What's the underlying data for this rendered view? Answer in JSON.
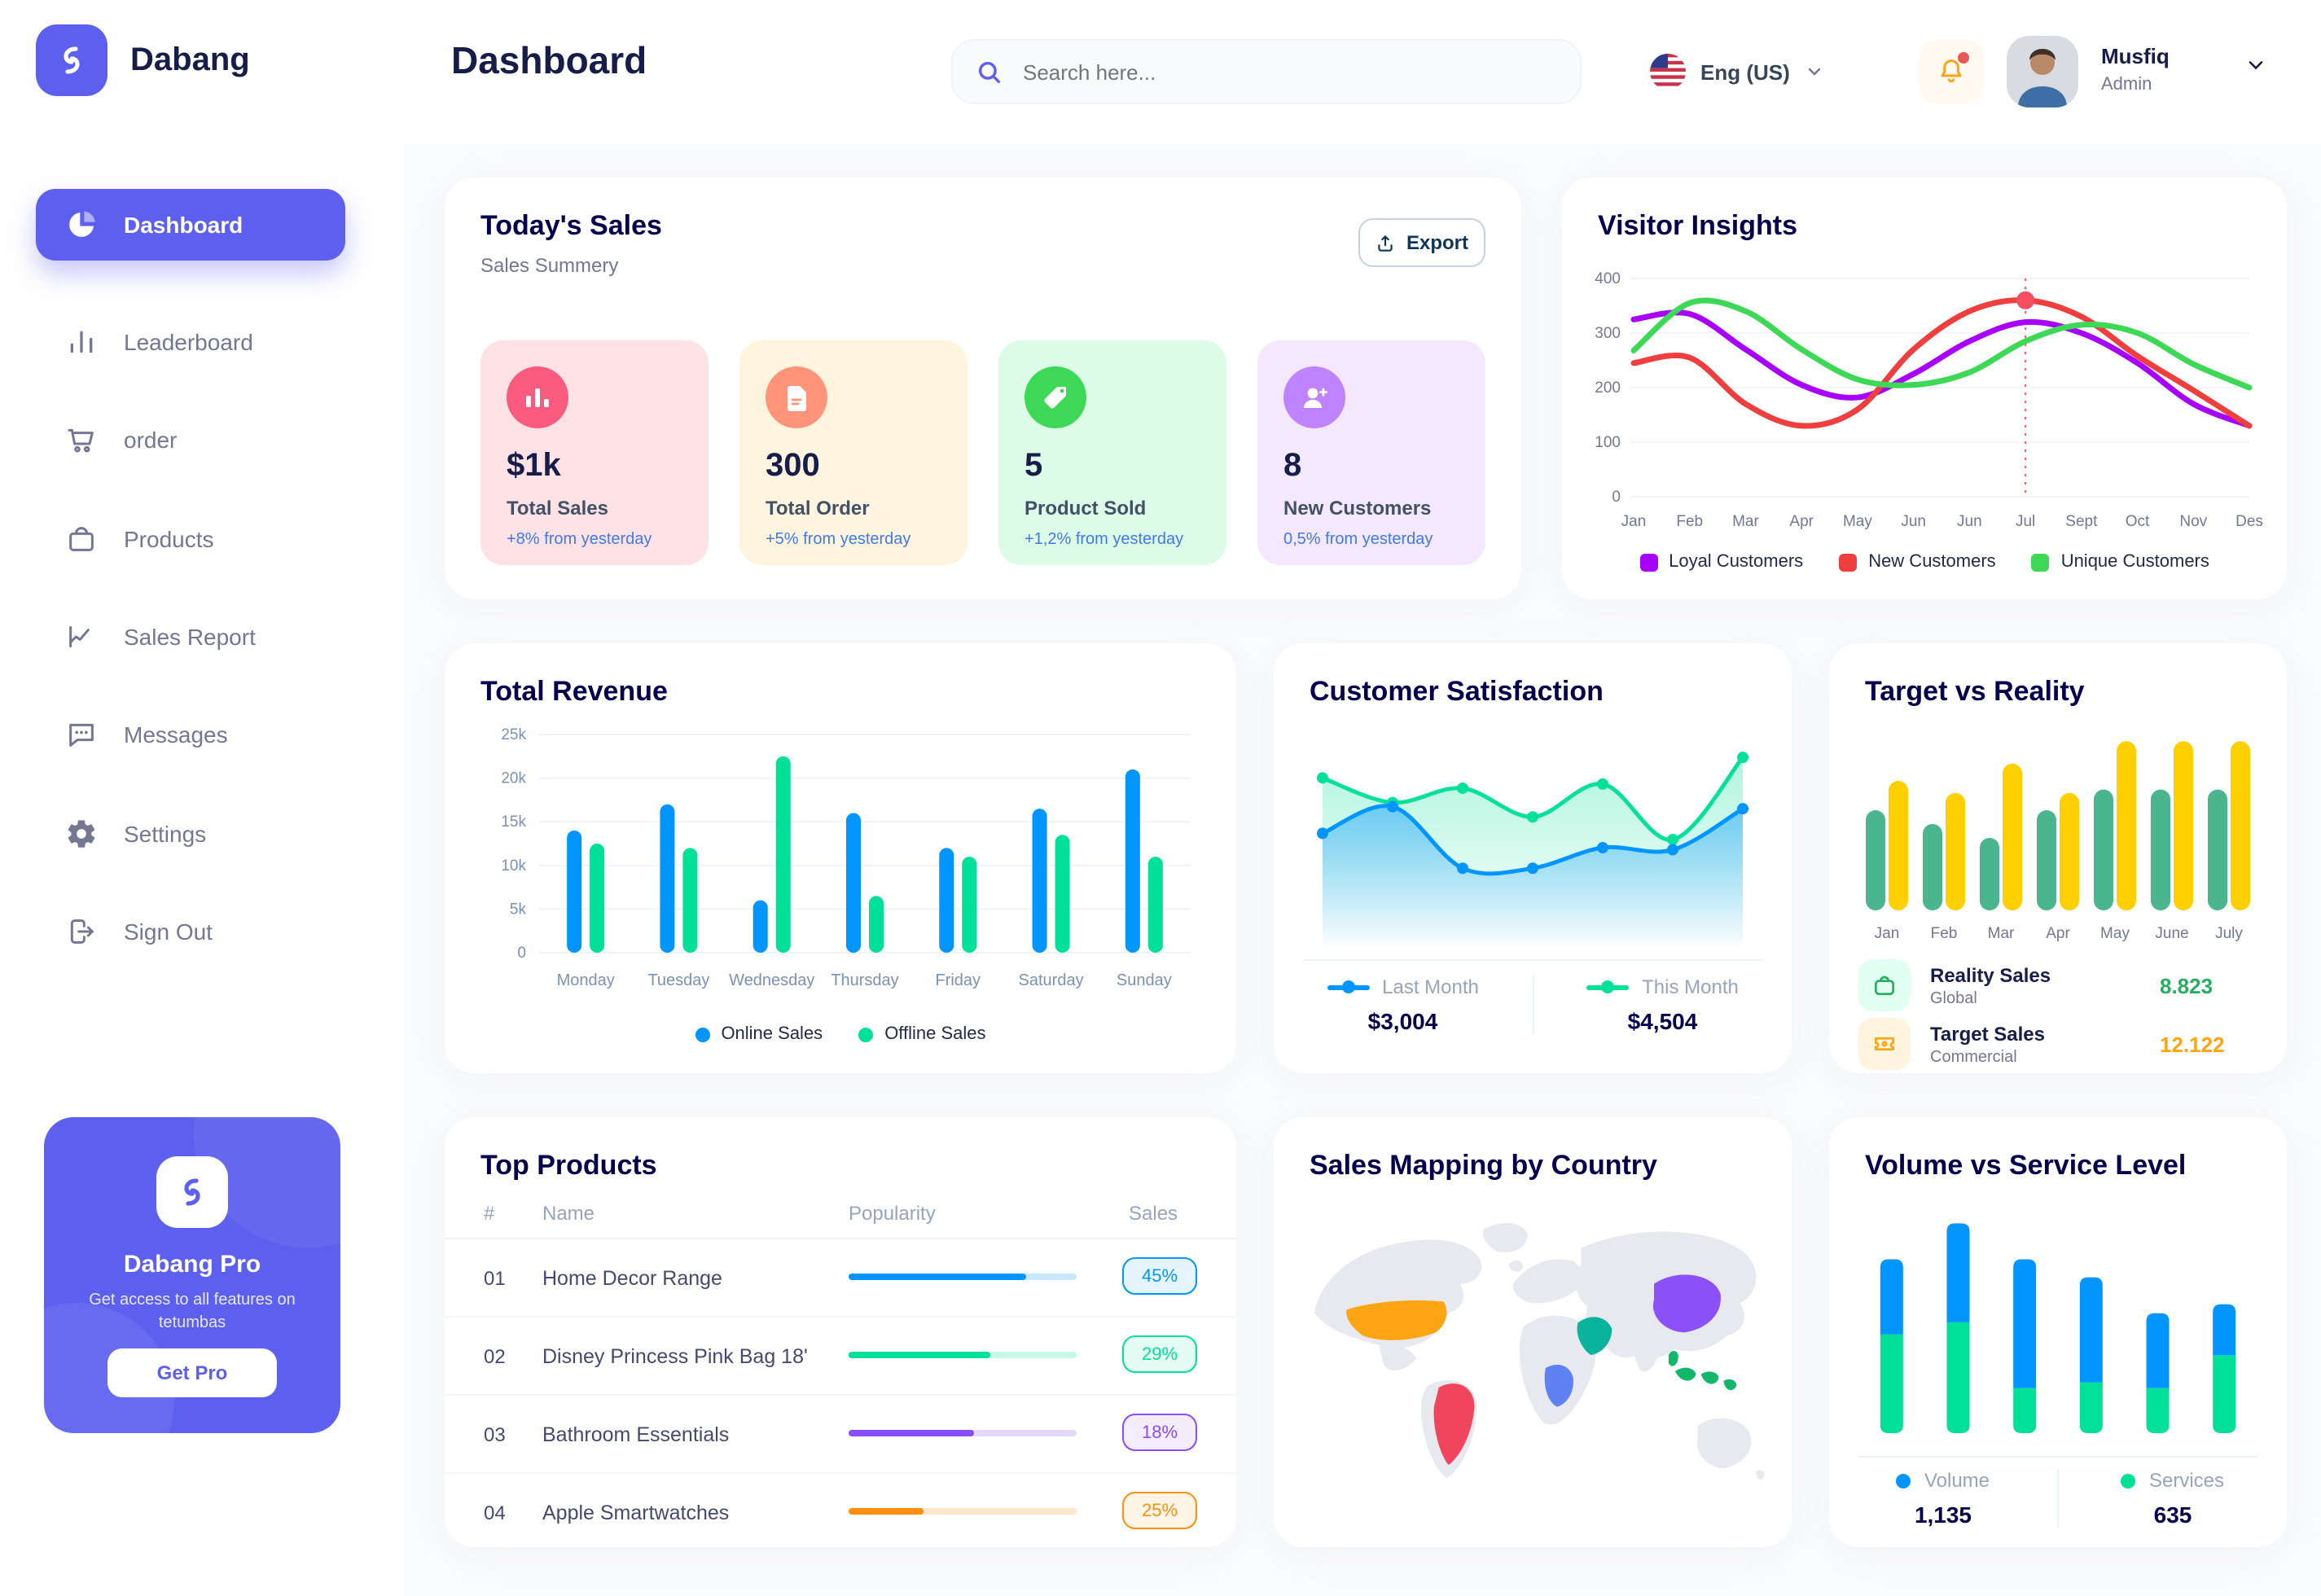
{
  "app": {
    "brand": "Dabang"
  },
  "header": {
    "page_title": "Dashboard",
    "search_placeholder": "Search here...",
    "language": "Eng (US)",
    "user_name": "Musfiq",
    "user_role": "Admin"
  },
  "sidebar": {
    "items": [
      {
        "label": "Dashboard",
        "active": true
      },
      {
        "label": "Leaderboard",
        "active": false
      },
      {
        "label": "order",
        "active": false
      },
      {
        "label": "Products",
        "active": false
      },
      {
        "label": "Sales Report",
        "active": false
      },
      {
        "label": "Messages",
        "active": false
      },
      {
        "label": "Settings",
        "active": false
      },
      {
        "label": "Sign Out",
        "active": false
      }
    ],
    "pro": {
      "title": "Dabang Pro",
      "description": "Get access to all features on tetumbas",
      "button_label": "Get Pro"
    }
  },
  "todays_sales": {
    "title": "Today's Sales",
    "subtitle": "Sales Summery",
    "export_label": "Export",
    "stats": [
      {
        "value": "$1k",
        "label": "Total Sales",
        "delta": "+8% from yesterday",
        "card_bg": "#FFE2E5",
        "icon_bg": "#FA5A7D"
      },
      {
        "value": "300",
        "label": "Total Order",
        "delta": "+5% from yesterday",
        "card_bg": "#FFF4DE",
        "icon_bg": "#FF947A"
      },
      {
        "value": "5",
        "label": "Product Sold",
        "delta": "+1,2% from yesterday",
        "card_bg": "#DCFCE7",
        "icon_bg": "#3CD856"
      },
      {
        "value": "8",
        "label": "New Customers",
        "delta": "0,5% from yesterday",
        "card_bg": "#F3E8FF",
        "icon_bg": "#BF83FF"
      }
    ]
  },
  "chart_data": [
    {
      "id": "visitor_insights",
      "type": "line",
      "title": "Visitor Insights",
      "x": [
        "Jan",
        "Feb",
        "Mar",
        "Apr",
        "May",
        "Jun",
        "Jun",
        "Jul",
        "Sept",
        "Oct",
        "Nov",
        "Des"
      ],
      "ylim": [
        0,
        400
      ],
      "yticks": [
        0,
        100,
        200,
        300,
        400
      ],
      "grid": true,
      "legend_position": "bottom",
      "series": [
        {
          "name": "Loyal Customers",
          "color": "#A700FF",
          "values": [
            325,
            335,
            270,
            205,
            182,
            225,
            285,
            320,
            300,
            245,
            170,
            130
          ]
        },
        {
          "name": "New Customers",
          "color": "#EF3E3E",
          "values": [
            245,
            255,
            170,
            130,
            160,
            270,
            340,
            360,
            330,
            258,
            195,
            130
          ]
        },
        {
          "name": "Unique Customers",
          "color": "#3CD856",
          "values": [
            268,
            355,
            340,
            270,
            215,
            205,
            228,
            285,
            315,
            300,
            243,
            200
          ]
        }
      ],
      "annotation": {
        "x_index": 7,
        "x_label": "Jul",
        "marker_series": 1,
        "marker_value": 360,
        "line_color": "#F64E60"
      }
    },
    {
      "id": "total_revenue",
      "type": "bar",
      "title": "Total Revenue",
      "categories": [
        "Monday",
        "Tuesday",
        "Wednesday",
        "Thursday",
        "Friday",
        "Saturday",
        "Sunday"
      ],
      "ylim": [
        0,
        25000
      ],
      "yticks": [
        "0",
        "5k",
        "10k",
        "15k",
        "20k",
        "25k"
      ],
      "ytick_values": [
        0,
        5000,
        10000,
        15000,
        20000,
        25000
      ],
      "grid": true,
      "legend_position": "bottom",
      "series": [
        {
          "name": "Online Sales",
          "color": "#0095FF",
          "values": [
            14000,
            17000,
            6000,
            16000,
            12000,
            16500,
            21000
          ]
        },
        {
          "name": "Offline Sales",
          "color": "#00E096",
          "values": [
            12500,
            12000,
            22500,
            6500,
            11000,
            13500,
            11000
          ]
        }
      ]
    },
    {
      "id": "customer_satisfaction",
      "type": "area",
      "title": "Customer Satisfaction",
      "ylim": [
        0,
        100
      ],
      "legend_position": "bottom",
      "series": [
        {
          "name": "Last Month",
          "color": "#0095FF",
          "total": "$3,004",
          "values": [
            55,
            68,
            38,
            38,
            48,
            47,
            67
          ]
        },
        {
          "name": "This Month",
          "color": "#07E098",
          "total": "$4,504",
          "values": [
            82,
            70,
            77,
            63,
            79,
            52,
            92
          ]
        }
      ]
    },
    {
      "id": "target_vs_reality",
      "type": "bar",
      "title": "Target vs Reality",
      "categories": [
        "Jan",
        "Feb",
        "Mar",
        "Apr",
        "May",
        "June",
        "July"
      ],
      "ylim": [
        0,
        100
      ],
      "series": [
        {
          "name": "Reality Sales",
          "color": "#4AB58E",
          "values": [
            58,
            50,
            42,
            58,
            70,
            70,
            70
          ]
        },
        {
          "name": "Target Sales",
          "color": "#FFCF00",
          "values": [
            75,
            68,
            85,
            68,
            98,
            98,
            98
          ]
        }
      ],
      "legend": [
        {
          "name": "Reality Sales",
          "sub": "Global",
          "value": "8.823",
          "value_color": "#27AE60",
          "icon_bg": "#E2FFF3",
          "icon_color": "#27AE60"
        },
        {
          "name": "Target Sales",
          "sub": "Commercial",
          "value": "12.122",
          "value_color": "#FFA412",
          "icon_bg": "#FFF4DE",
          "icon_color": "#FFA412"
        }
      ]
    },
    {
      "id": "volume_vs_service",
      "type": "stacked-bar",
      "title": "Volume vs Service Level",
      "ylim": [
        0,
        75
      ],
      "legend_position": "bottom",
      "series": [
        {
          "name": "Volume",
          "color": "#0095FF",
          "total": "1,135",
          "values": [
            25,
            33,
            43,
            35,
            25,
            17
          ]
        },
        {
          "name": "Services",
          "color": "#00E096",
          "total": "635",
          "values": [
            33,
            37,
            15,
            17,
            15,
            26
          ]
        }
      ]
    }
  ],
  "top_products": {
    "title": "Top Products",
    "columns": [
      "#",
      "Name",
      "Popularity",
      "Sales"
    ],
    "rows": [
      {
        "num": "01",
        "name": "Home Decor Range",
        "popularity": 78,
        "sales": "45%",
        "color": "#0095FF"
      },
      {
        "num": "02",
        "name": "Disney Princess Pink Bag 18'",
        "popularity": 62,
        "sales": "29%",
        "color": "#00E096"
      },
      {
        "num": "03",
        "name": "Bathroom Essentials",
        "popularity": 55,
        "sales": "18%",
        "color": "#884DFF"
      },
      {
        "num": "04",
        "name": "Apple Smartwatches",
        "popularity": 33,
        "sales": "25%",
        "color": "#FF8F0D"
      }
    ]
  },
  "sales_mapping": {
    "title": "Sales Mapping by Country",
    "countries": [
      {
        "name": "United States",
        "color": "#FFA412"
      },
      {
        "name": "Brazil",
        "color": "#F0455C"
      },
      {
        "name": "Saudi Arabia",
        "color": "#0AB39C"
      },
      {
        "name": "Democratic Republic of Congo",
        "color": "#5E81F4"
      },
      {
        "name": "China",
        "color": "#8C51F6"
      },
      {
        "name": "Indonesia",
        "color": "#12B76A"
      }
    ]
  }
}
